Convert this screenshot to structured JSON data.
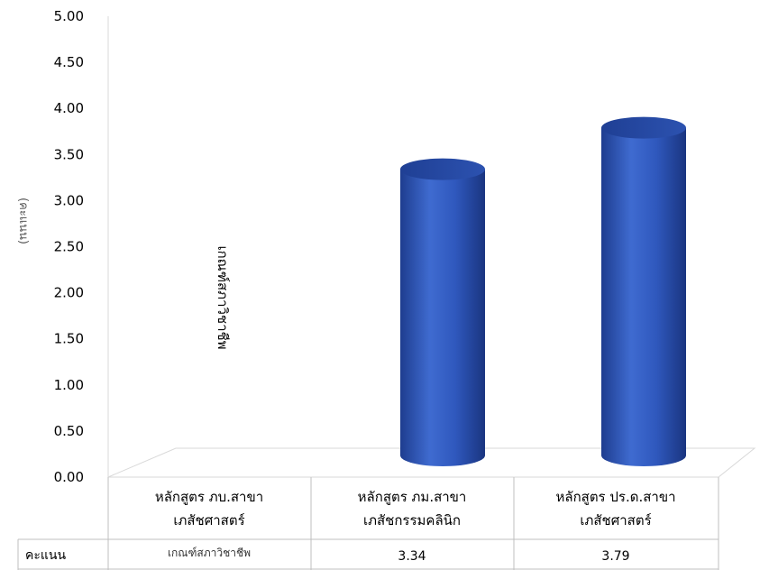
{
  "chart_data": {
    "type": "bar",
    "ylabel": "(คะแนน)",
    "ylim": [
      0,
      5
    ],
    "yticks": [
      "0.00",
      "0.50",
      "1.00",
      "1.50",
      "2.00",
      "2.50",
      "3.00",
      "3.50",
      "4.00",
      "4.50",
      "5.00"
    ],
    "categories": [
      [
        "หลักสูตร ภบ.สาขา",
        "เภสัชศาสตร์"
      ],
      [
        "หลักสูตร ภม.สาขา",
        "เภสัชกรรมคลินิก"
      ],
      [
        "หลักสูตร ปร.ด.สาขา",
        "เภสัชศาสตร์"
      ]
    ],
    "series": [
      {
        "name": "คะแนน",
        "values": [
          null,
          3.34,
          3.79
        ]
      }
    ],
    "table_row_label": "คะแนน",
    "table_values": [
      "เกณฑ์สภาวิชาชีพ",
      "3.34",
      "3.79"
    ],
    "annotation": "เกณฑ์สภาวิชาชีพ",
    "bar_color": "#2E55B4",
    "grid": false,
    "legend": "none"
  }
}
